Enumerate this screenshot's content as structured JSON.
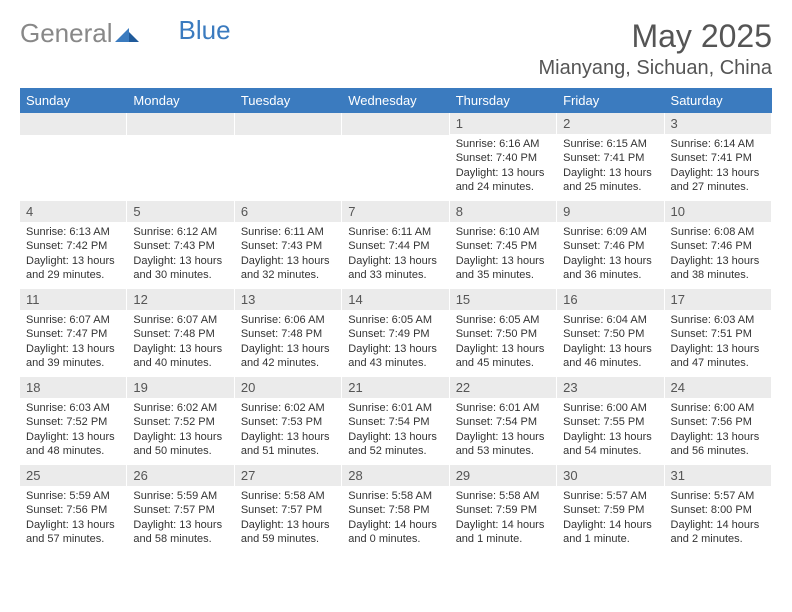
{
  "logo": {
    "text1": "General",
    "text2": "Blue"
  },
  "title": "May 2025",
  "location": "Mianyang, Sichuan, China",
  "colors": {
    "header_bg": "#3b7bbf",
    "header_text": "#ffffff",
    "daynum_bg": "#ebebeb",
    "text": "#333333",
    "title_text": "#555555"
  },
  "day_headers": [
    "Sunday",
    "Monday",
    "Tuesday",
    "Wednesday",
    "Thursday",
    "Friday",
    "Saturday"
  ],
  "weeks": [
    [
      {
        "n": "",
        "sunrise": "",
        "sunset": "",
        "daylight": ""
      },
      {
        "n": "",
        "sunrise": "",
        "sunset": "",
        "daylight": ""
      },
      {
        "n": "",
        "sunrise": "",
        "sunset": "",
        "daylight": ""
      },
      {
        "n": "",
        "sunrise": "",
        "sunset": "",
        "daylight": ""
      },
      {
        "n": "1",
        "sunrise": "Sunrise: 6:16 AM",
        "sunset": "Sunset: 7:40 PM",
        "daylight": "Daylight: 13 hours and 24 minutes."
      },
      {
        "n": "2",
        "sunrise": "Sunrise: 6:15 AM",
        "sunset": "Sunset: 7:41 PM",
        "daylight": "Daylight: 13 hours and 25 minutes."
      },
      {
        "n": "3",
        "sunrise": "Sunrise: 6:14 AM",
        "sunset": "Sunset: 7:41 PM",
        "daylight": "Daylight: 13 hours and 27 minutes."
      }
    ],
    [
      {
        "n": "4",
        "sunrise": "Sunrise: 6:13 AM",
        "sunset": "Sunset: 7:42 PM",
        "daylight": "Daylight: 13 hours and 29 minutes."
      },
      {
        "n": "5",
        "sunrise": "Sunrise: 6:12 AM",
        "sunset": "Sunset: 7:43 PM",
        "daylight": "Daylight: 13 hours and 30 minutes."
      },
      {
        "n": "6",
        "sunrise": "Sunrise: 6:11 AM",
        "sunset": "Sunset: 7:43 PM",
        "daylight": "Daylight: 13 hours and 32 minutes."
      },
      {
        "n": "7",
        "sunrise": "Sunrise: 6:11 AM",
        "sunset": "Sunset: 7:44 PM",
        "daylight": "Daylight: 13 hours and 33 minutes."
      },
      {
        "n": "8",
        "sunrise": "Sunrise: 6:10 AM",
        "sunset": "Sunset: 7:45 PM",
        "daylight": "Daylight: 13 hours and 35 minutes."
      },
      {
        "n": "9",
        "sunrise": "Sunrise: 6:09 AM",
        "sunset": "Sunset: 7:46 PM",
        "daylight": "Daylight: 13 hours and 36 minutes."
      },
      {
        "n": "10",
        "sunrise": "Sunrise: 6:08 AM",
        "sunset": "Sunset: 7:46 PM",
        "daylight": "Daylight: 13 hours and 38 minutes."
      }
    ],
    [
      {
        "n": "11",
        "sunrise": "Sunrise: 6:07 AM",
        "sunset": "Sunset: 7:47 PM",
        "daylight": "Daylight: 13 hours and 39 minutes."
      },
      {
        "n": "12",
        "sunrise": "Sunrise: 6:07 AM",
        "sunset": "Sunset: 7:48 PM",
        "daylight": "Daylight: 13 hours and 40 minutes."
      },
      {
        "n": "13",
        "sunrise": "Sunrise: 6:06 AM",
        "sunset": "Sunset: 7:48 PM",
        "daylight": "Daylight: 13 hours and 42 minutes."
      },
      {
        "n": "14",
        "sunrise": "Sunrise: 6:05 AM",
        "sunset": "Sunset: 7:49 PM",
        "daylight": "Daylight: 13 hours and 43 minutes."
      },
      {
        "n": "15",
        "sunrise": "Sunrise: 6:05 AM",
        "sunset": "Sunset: 7:50 PM",
        "daylight": "Daylight: 13 hours and 45 minutes."
      },
      {
        "n": "16",
        "sunrise": "Sunrise: 6:04 AM",
        "sunset": "Sunset: 7:50 PM",
        "daylight": "Daylight: 13 hours and 46 minutes."
      },
      {
        "n": "17",
        "sunrise": "Sunrise: 6:03 AM",
        "sunset": "Sunset: 7:51 PM",
        "daylight": "Daylight: 13 hours and 47 minutes."
      }
    ],
    [
      {
        "n": "18",
        "sunrise": "Sunrise: 6:03 AM",
        "sunset": "Sunset: 7:52 PM",
        "daylight": "Daylight: 13 hours and 48 minutes."
      },
      {
        "n": "19",
        "sunrise": "Sunrise: 6:02 AM",
        "sunset": "Sunset: 7:52 PM",
        "daylight": "Daylight: 13 hours and 50 minutes."
      },
      {
        "n": "20",
        "sunrise": "Sunrise: 6:02 AM",
        "sunset": "Sunset: 7:53 PM",
        "daylight": "Daylight: 13 hours and 51 minutes."
      },
      {
        "n": "21",
        "sunrise": "Sunrise: 6:01 AM",
        "sunset": "Sunset: 7:54 PM",
        "daylight": "Daylight: 13 hours and 52 minutes."
      },
      {
        "n": "22",
        "sunrise": "Sunrise: 6:01 AM",
        "sunset": "Sunset: 7:54 PM",
        "daylight": "Daylight: 13 hours and 53 minutes."
      },
      {
        "n": "23",
        "sunrise": "Sunrise: 6:00 AM",
        "sunset": "Sunset: 7:55 PM",
        "daylight": "Daylight: 13 hours and 54 minutes."
      },
      {
        "n": "24",
        "sunrise": "Sunrise: 6:00 AM",
        "sunset": "Sunset: 7:56 PM",
        "daylight": "Daylight: 13 hours and 56 minutes."
      }
    ],
    [
      {
        "n": "25",
        "sunrise": "Sunrise: 5:59 AM",
        "sunset": "Sunset: 7:56 PM",
        "daylight": "Daylight: 13 hours and 57 minutes."
      },
      {
        "n": "26",
        "sunrise": "Sunrise: 5:59 AM",
        "sunset": "Sunset: 7:57 PM",
        "daylight": "Daylight: 13 hours and 58 minutes."
      },
      {
        "n": "27",
        "sunrise": "Sunrise: 5:58 AM",
        "sunset": "Sunset: 7:57 PM",
        "daylight": "Daylight: 13 hours and 59 minutes."
      },
      {
        "n": "28",
        "sunrise": "Sunrise: 5:58 AM",
        "sunset": "Sunset: 7:58 PM",
        "daylight": "Daylight: 14 hours and 0 minutes."
      },
      {
        "n": "29",
        "sunrise": "Sunrise: 5:58 AM",
        "sunset": "Sunset: 7:59 PM",
        "daylight": "Daylight: 14 hours and 1 minute."
      },
      {
        "n": "30",
        "sunrise": "Sunrise: 5:57 AM",
        "sunset": "Sunset: 7:59 PM",
        "daylight": "Daylight: 14 hours and 1 minute."
      },
      {
        "n": "31",
        "sunrise": "Sunrise: 5:57 AM",
        "sunset": "Sunset: 8:00 PM",
        "daylight": "Daylight: 14 hours and 2 minutes."
      }
    ]
  ]
}
